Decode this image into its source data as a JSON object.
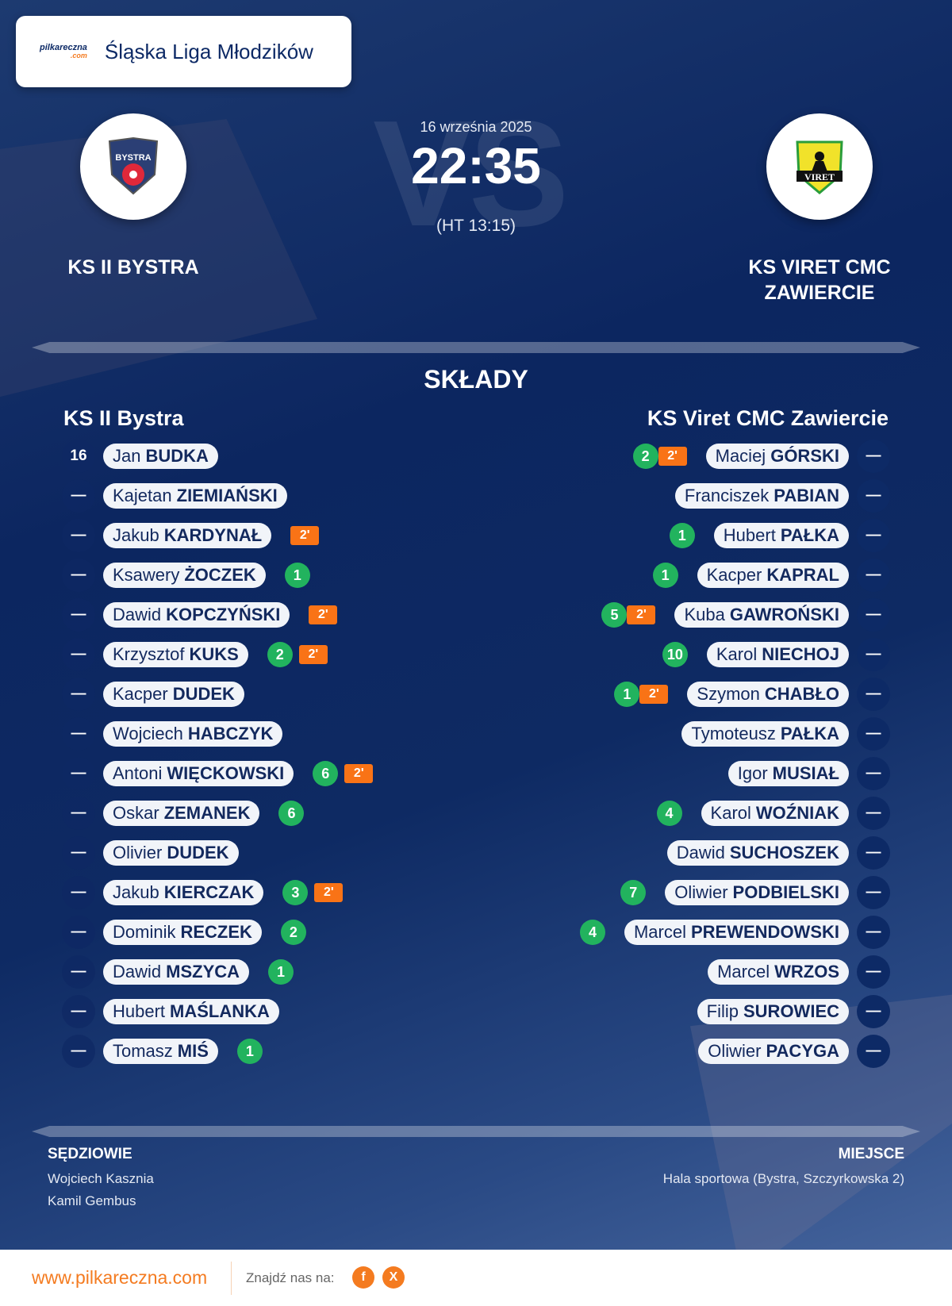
{
  "league": {
    "brand": "pilkareczna",
    ".com": ".com",
    "brand_suffix": ".com",
    "name": "Śląska Liga Młodzików"
  },
  "match": {
    "date": "16 września 2025",
    "score": "22:35",
    "halftime": "(HT 13:15)",
    "watermark": "VS"
  },
  "home": {
    "name_upper": "KS II BYSTRA",
    "name": "KS II Bystra",
    "logo_text": "BYSTRA"
  },
  "away": {
    "name_upper_line1": "KS VIRET CMC",
    "name_upper_line2": "ZAWIERCIE",
    "name": "KS Viret CMC Zawiercie",
    "logo_text": "VIRET"
  },
  "lineups_title": "SKŁADY",
  "colors": {
    "goal": "#22b35e",
    "penalty": "#f97316",
    "navy": "#0d2a66",
    "accent": "#f47b20"
  },
  "home_players": [
    {
      "number": "16",
      "first": "Jan",
      "last": "BUDKA",
      "goals": "",
      "penalty": ""
    },
    {
      "number": "—",
      "first": "Kajetan",
      "last": "ZIEMIAŃSKI",
      "goals": "",
      "penalty": ""
    },
    {
      "number": "—",
      "first": "Jakub",
      "last": "KARDYNAŁ",
      "goals": "",
      "penalty": "2'"
    },
    {
      "number": "—",
      "first": "Ksawery",
      "last": "ŻOCZEK",
      "goals": "1",
      "penalty": ""
    },
    {
      "number": "—",
      "first": "Dawid",
      "last": "KOPCZYŃSKI",
      "goals": "",
      "penalty": "2'"
    },
    {
      "number": "—",
      "first": "Krzysztof",
      "last": "KUKS",
      "goals": "2",
      "penalty": "2'"
    },
    {
      "number": "—",
      "first": "Kacper",
      "last": "DUDEK",
      "goals": "",
      "penalty": ""
    },
    {
      "number": "—",
      "first": "Wojciech",
      "last": "HABCZYK",
      "goals": "",
      "penalty": ""
    },
    {
      "number": "—",
      "first": "Antoni",
      "last": "WIĘCKOWSKI",
      "goals": "6",
      "penalty": "2'"
    },
    {
      "number": "—",
      "first": "Oskar",
      "last": "ZEMANEK",
      "goals": "6",
      "penalty": ""
    },
    {
      "number": "—",
      "first": "Olivier",
      "last": "DUDEK",
      "goals": "",
      "penalty": ""
    },
    {
      "number": "—",
      "first": "Jakub",
      "last": "KIERCZAK",
      "goals": "3",
      "penalty": "2'"
    },
    {
      "number": "—",
      "first": "Dominik",
      "last": "RECZEK",
      "goals": "2",
      "penalty": ""
    },
    {
      "number": "—",
      "first": "Dawid",
      "last": "MSZYCA",
      "goals": "1",
      "penalty": ""
    },
    {
      "number": "—",
      "first": "Hubert",
      "last": "MAŚLANKA",
      "goals": "",
      "penalty": ""
    },
    {
      "number": "—",
      "first": "Tomasz",
      "last": "MIŚ",
      "goals": "1",
      "penalty": ""
    }
  ],
  "away_players": [
    {
      "number": "—",
      "first": "Maciej",
      "last": "GÓRSKI",
      "goals": "2",
      "penalty": "2'"
    },
    {
      "number": "—",
      "first": "Franciszek",
      "last": "PABIAN",
      "goals": "",
      "penalty": ""
    },
    {
      "number": "—",
      "first": "Hubert",
      "last": "PAŁKA",
      "goals": "1",
      "penalty": ""
    },
    {
      "number": "—",
      "first": "Kacper",
      "last": "KAPRAL",
      "goals": "1",
      "penalty": ""
    },
    {
      "number": "—",
      "first": "Kuba",
      "last": "GAWROŃSKI",
      "goals": "5",
      "penalty": "2'"
    },
    {
      "number": "—",
      "first": "Karol",
      "last": "NIECHOJ",
      "goals": "10",
      "penalty": ""
    },
    {
      "number": "—",
      "first": "Szymon",
      "last": "CHABŁO",
      "goals": "1",
      "penalty": "2'"
    },
    {
      "number": "—",
      "first": "Tymoteusz",
      "last": "PAŁKA",
      "goals": "",
      "penalty": ""
    },
    {
      "number": "—",
      "first": "Igor",
      "last": "MUSIAŁ",
      "goals": "",
      "penalty": ""
    },
    {
      "number": "—",
      "first": "Karol",
      "last": "WOŹNIAK",
      "goals": "4",
      "penalty": ""
    },
    {
      "number": "—",
      "first": "Dawid",
      "last": "SUCHOSZEK",
      "goals": "",
      "penalty": ""
    },
    {
      "number": "—",
      "first": "Oliwier",
      "last": "PODBIELSKI",
      "goals": "7",
      "penalty": ""
    },
    {
      "number": "—",
      "first": "Marcel",
      "last": "PREWENDOWSKI",
      "goals": "4",
      "penalty": ""
    },
    {
      "number": "—",
      "first": "Marcel",
      "last": "WRZOS",
      "goals": "",
      "penalty": ""
    },
    {
      "number": "—",
      "first": "Filip",
      "last": "SUROWIEC",
      "goals": "",
      "penalty": ""
    },
    {
      "number": "—",
      "first": "Oliwier",
      "last": "PACYGA",
      "goals": "",
      "penalty": ""
    }
  ],
  "referees": {
    "title": "SĘDZIOWIE",
    "names": [
      "Wojciech Kasznia",
      "Kamil Gembus"
    ]
  },
  "venue": {
    "title": "MIEJSCE",
    "name": "Hala sportowa (Bystra, Szczyrkowska 2)"
  },
  "footer": {
    "website": "www.pilkareczna.com",
    "find_us": "Znajdź nas na:",
    "social": [
      {
        "icon": "facebook-icon",
        "glyph": "f"
      },
      {
        "icon": "x-icon",
        "glyph": "X"
      }
    ]
  }
}
